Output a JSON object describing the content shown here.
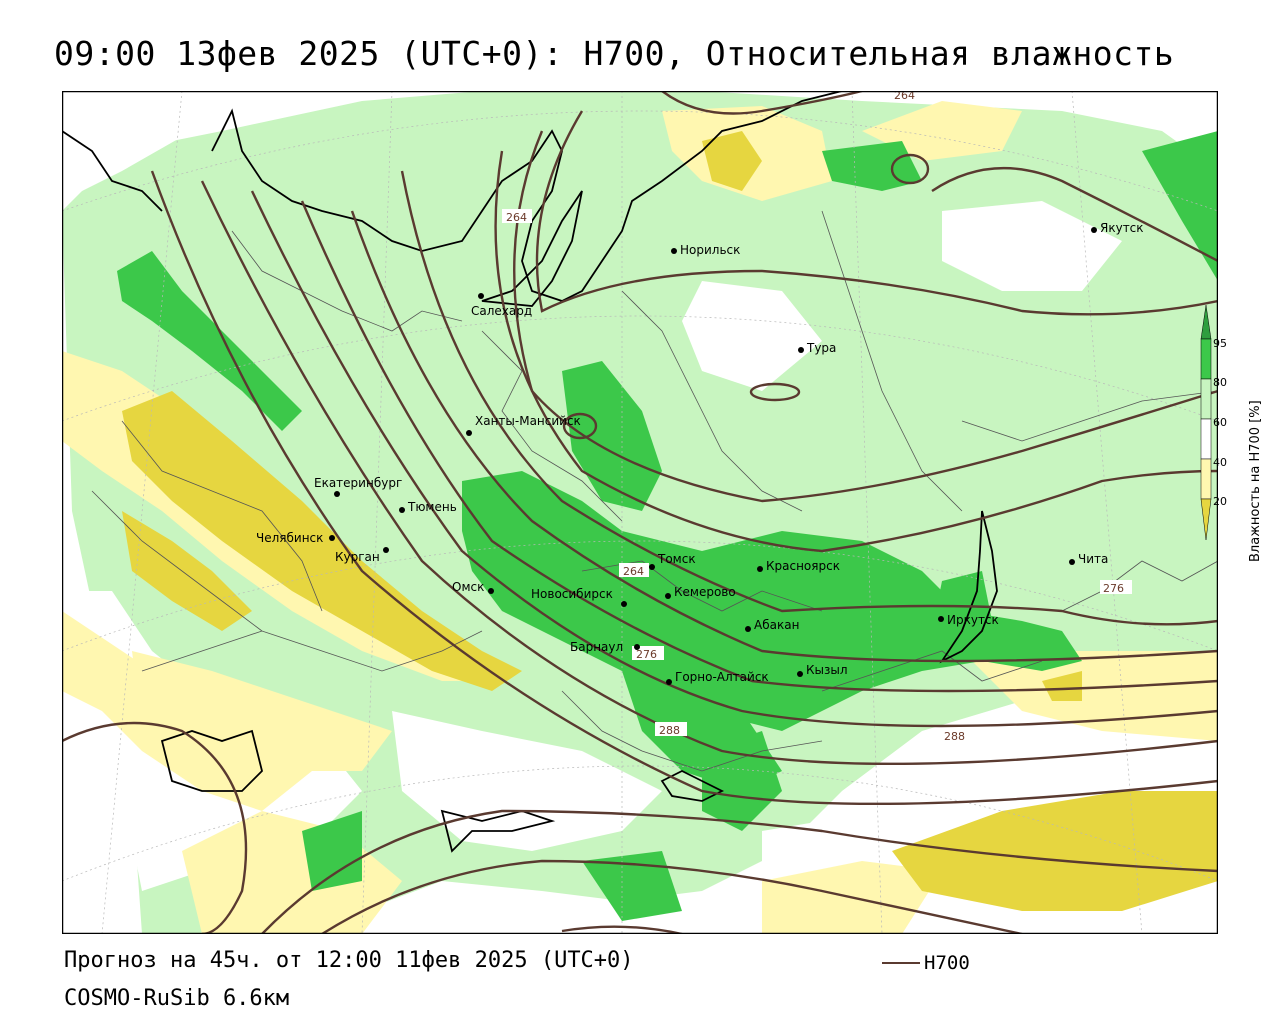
{
  "title": "09:00 13фев 2025 (UTC+0): H700, Относительная влажность",
  "footer": {
    "forecast": "Прогноз на 45ч. от 12:00 11фев 2025 (UTC+0)",
    "model": "COSMO-RuSib 6.6км"
  },
  "key": {
    "line_label": "H700",
    "line_color": "#5a3a30"
  },
  "legend": {
    "title": "Влажность на H700 [%]",
    "ticks": [
      "95",
      "80",
      "60",
      "40",
      "20"
    ],
    "colors": {
      "above_95": "#2e9e3e",
      "80_95": "#3cc84a",
      "60_80": "#c8f5c0",
      "40_60": "#ffffff",
      "20_40": "#fff7b0",
      "below_20": "#e6d640"
    }
  },
  "isolines": [
    "264",
    "264",
    "264",
    "264",
    "276",
    "276",
    "288",
    "288"
  ],
  "cities": [
    {
      "name": "Якутск"
    },
    {
      "name": "Норильск"
    },
    {
      "name": "Салехард"
    },
    {
      "name": "Тура"
    },
    {
      "name": "Ханты-Мансийск"
    },
    {
      "name": "Екатеринбург"
    },
    {
      "name": "Тюмень"
    },
    {
      "name": "Челябинск"
    },
    {
      "name": "Курган"
    },
    {
      "name": "Омск"
    },
    {
      "name": "Томск"
    },
    {
      "name": "Красноярск"
    },
    {
      "name": "Новосибирск"
    },
    {
      "name": "Кемерово"
    },
    {
      "name": "Абакан"
    },
    {
      "name": "Барнаул"
    },
    {
      "name": "Горно-Алтайск"
    },
    {
      "name": "Кызыл"
    },
    {
      "name": "Иркутск"
    },
    {
      "name": "Чита"
    }
  ]
}
